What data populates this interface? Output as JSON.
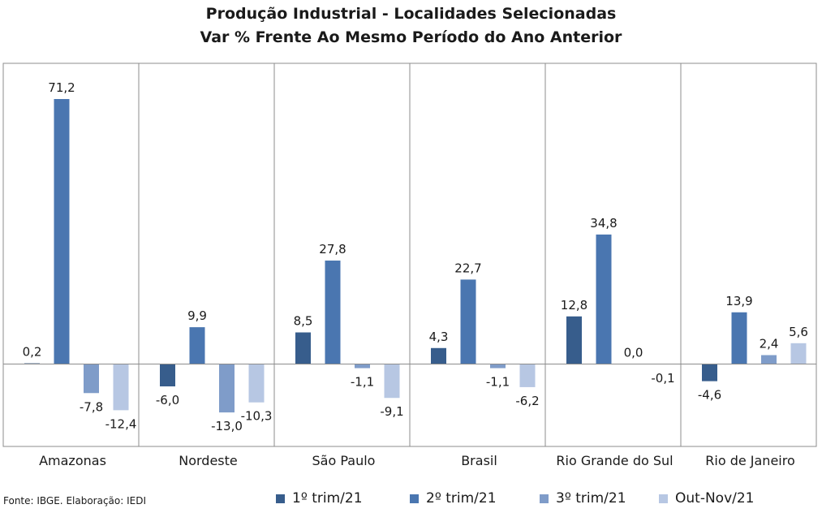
{
  "chart_data": {
    "type": "bar",
    "title": "Produção Industrial - Localidades Selecionadas",
    "subtitle": "Var % Frente Ao Mesmo Período do Ano Anterior",
    "categories": [
      "Amazonas",
      "Nordeste",
      "São Paulo",
      "Brasil",
      "Rio Grande do Sul",
      "Rio de Janeiro"
    ],
    "series": [
      {
        "name": "1º trim/21",
        "color": "#375d8c",
        "values": [
          0.2,
          -6.0,
          8.5,
          4.3,
          12.8,
          -4.6
        ],
        "labels": [
          "0,2",
          "-6,0",
          "8,5",
          "4,3",
          "12,8",
          "-4,6"
        ]
      },
      {
        "name": "2º trim/21",
        "color": "#4a76b0",
        "values": [
          71.2,
          9.9,
          27.8,
          22.7,
          34.8,
          13.9
        ],
        "labels": [
          "71,2",
          "9,9",
          "27,8",
          "22,7",
          "34,8",
          "13,9"
        ]
      },
      {
        "name": "3º trim/21",
        "color": "#7f9cc9",
        "values": [
          -7.8,
          -13.0,
          -1.1,
          -1.1,
          0.0,
          2.4
        ],
        "labels": [
          "-7,8",
          "-13,0",
          "-1,1",
          "-1,1",
          "0,0",
          "2,4"
        ]
      },
      {
        "name": "Out-Nov/21",
        "color": "#b7c7e3",
        "values": [
          -12.4,
          -10.3,
          -9.1,
          -6.2,
          -0.1,
          5.6
        ],
        "labels": [
          "-12,4",
          "-10,3",
          "-9,1",
          "-6,2",
          "-0,1",
          "5,6"
        ]
      }
    ],
    "ylim": [
      -16,
      80
    ],
    "grid": false,
    "legend": "bottom"
  },
  "source": "Fonte: IBGE. Elaboração: IEDI"
}
